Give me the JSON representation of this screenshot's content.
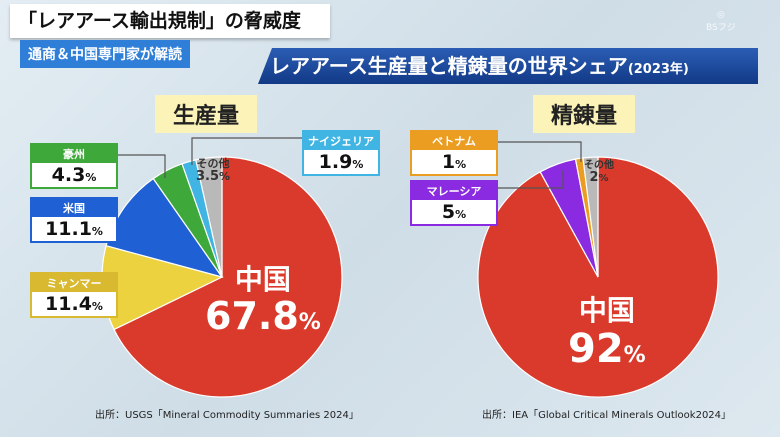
{
  "header": {
    "title": "「レアアース輸出規制」の脅威度",
    "subtitle": "通商＆中国専門家が解読",
    "chart_title": "レアアース生産量と精錬量の世界シェア",
    "chart_year": "(2023年)",
    "logo": "BSフジ"
  },
  "chart_data": [
    {
      "type": "pie",
      "title": "生産量",
      "unit": "%",
      "source": "出所：USGS「Mineral Commodity Summaries 2024」",
      "slices": [
        {
          "label": "中国",
          "value": 67.8,
          "color": "#d93a2b"
        },
        {
          "label": "ミャンマー",
          "value": 11.4,
          "color": "#ecd23f"
        },
        {
          "label": "米国",
          "value": 11.1,
          "color": "#1f61d4"
        },
        {
          "label": "豪州",
          "value": 4.3,
          "color": "#3ea83a"
        },
        {
          "label": "ナイジェリア",
          "value": 1.9,
          "color": "#40b4e2"
        },
        {
          "label": "その他",
          "value": 3.5,
          "color": "#b9b9b9"
        }
      ]
    },
    {
      "type": "pie",
      "title": "精錬量",
      "unit": "%",
      "source": "出所：IEA「Global Critical Minerals Outlook2024」",
      "slices": [
        {
          "label": "中国",
          "value": 92,
          "color": "#d93a2b"
        },
        {
          "label": "マレーシア",
          "value": 5,
          "color": "#8a2be2"
        },
        {
          "label": "ベトナム",
          "value": 1,
          "color": "#eb9d22"
        },
        {
          "label": "その他",
          "value": 2,
          "color": "#b9b9b9"
        }
      ]
    }
  ],
  "pct": "%"
}
